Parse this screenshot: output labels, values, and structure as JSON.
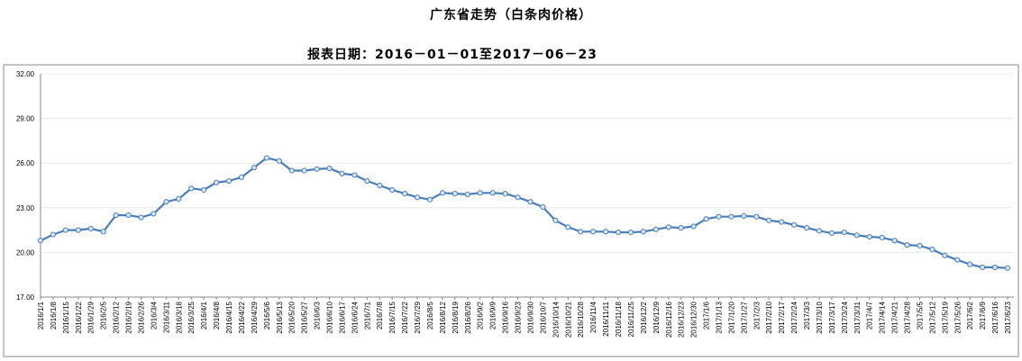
{
  "chart_data": {
    "type": "line",
    "title": "广东省走势（白条肉价格）",
    "subtitle": "报表日期：2016－01－01至2017－06－23",
    "xlabel": "",
    "ylabel": "",
    "ylim": [
      17,
      32
    ],
    "yticks": [
      "32.00",
      "29.00",
      "26.00",
      "23.00",
      "20.00",
      "17.00"
    ],
    "grid": true,
    "legend": "none",
    "line_color": "#4a7ebb",
    "x": [
      "2016/1/1",
      "2016/1/8",
      "2016/1/15",
      "2016/1/22",
      "2016/1/29",
      "2016/2/5",
      "2016/2/12",
      "2016/2/19",
      "2016/2/26",
      "2016/3/4",
      "2016/3/11",
      "2016/3/18",
      "2016/3/25",
      "2016/4/1",
      "2016/4/8",
      "2016/4/15",
      "2016/4/22",
      "2016/4/29",
      "2016/5/6",
      "2016/5/13",
      "2016/5/20",
      "2016/5/27",
      "2016/6/3",
      "2016/6/10",
      "2016/6/17",
      "2016/6/24",
      "2016/7/1",
      "2016/7/8",
      "2016/7/15",
      "2016/7/22",
      "2016/7/29",
      "2016/8/5",
      "2016/8/12",
      "2016/8/19",
      "2016/8/26",
      "2016/9/2",
      "2016/9/9",
      "2016/9/16",
      "2016/9/23",
      "2016/9/30",
      "2016/10/7",
      "2016/10/14",
      "2016/10/21",
      "2016/10/28",
      "2016/11/4",
      "2016/11/11",
      "2016/11/18",
      "2016/11/25",
      "2016/12/2",
      "2016/12/9",
      "2016/12/16",
      "2016/12/23",
      "2016/12/30",
      "2017/1/6",
      "2017/1/13",
      "2017/1/20",
      "2017/1/27",
      "2017/2/3",
      "2017/2/10",
      "2017/2/17",
      "2017/2/24",
      "2017/3/3",
      "2017/3/10",
      "2017/3/17",
      "2017/3/24",
      "2017/3/31",
      "2017/4/7",
      "2017/4/14",
      "2017/4/21",
      "2017/4/28",
      "2017/5/5",
      "2017/5/12",
      "2017/5/19",
      "2017/5/26",
      "2017/6/2",
      "2017/6/9",
      "2017/6/16",
      "2017/6/23"
    ],
    "series": [
      {
        "values": [
          20.8,
          21.2,
          21.5,
          21.5,
          21.6,
          21.4,
          22.5,
          22.5,
          22.35,
          22.6,
          23.4,
          23.6,
          24.3,
          24.2,
          24.7,
          24.8,
          25.05,
          25.7,
          26.35,
          26.15,
          25.5,
          25.5,
          25.6,
          25.65,
          25.3,
          25.2,
          24.8,
          24.5,
          24.2,
          23.95,
          23.7,
          23.55,
          24.0,
          23.95,
          23.9,
          24.0,
          24.0,
          23.95,
          23.7,
          23.4,
          23.05,
          22.15,
          21.7,
          21.4,
          21.4,
          21.4,
          21.35,
          21.35,
          21.4,
          21.55,
          21.7,
          21.65,
          21.75,
          22.25,
          22.4,
          22.4,
          22.45,
          22.4,
          22.15,
          22.05,
          21.85,
          21.65,
          21.45,
          21.3,
          21.35,
          21.15,
          21.05,
          21.0,
          20.8,
          20.5,
          20.45,
          20.2,
          19.8,
          19.5,
          19.2,
          19.0,
          19.0,
          18.95
        ]
      }
    ]
  }
}
